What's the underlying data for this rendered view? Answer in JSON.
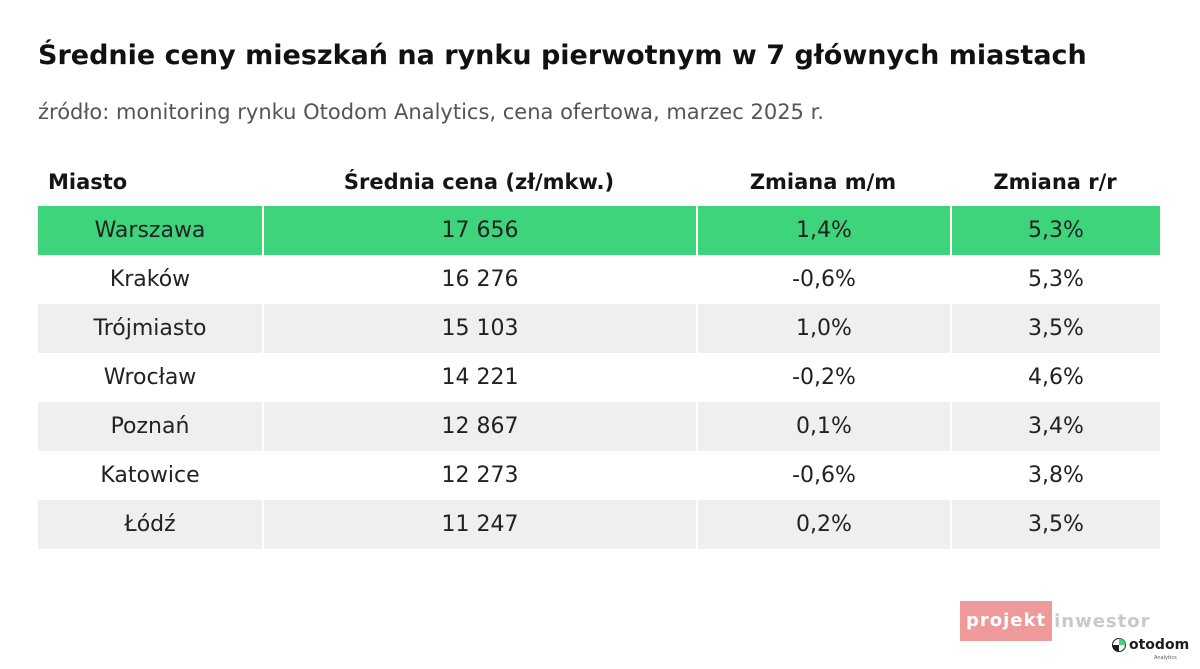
{
  "title": "Średnie ceny mieszkań na rynku pierwotnym w 7 głównych miastach",
  "subtitle": "źródło: monitoring rynku Otodom Analytics, cena ofertowa, marzec 2025 r.",
  "colors": {
    "highlight": "#3ed47c",
    "row_alt": "#efefef",
    "row_plain": "#ffffff",
    "watermark": "#ee9a9a"
  },
  "chart_data": {
    "type": "table",
    "headers": [
      "Miasto",
      "Średnia cena (zł/mkw.)",
      "Zmiana m/m",
      "Zmiana r/r"
    ],
    "rows": [
      [
        "Warszawa",
        "17 656",
        "1,4%",
        "5,3%"
      ],
      [
        "Kraków",
        "16 276",
        "-0,6%",
        "5,3%"
      ],
      [
        "Trójmiasto",
        "15 103",
        "1,0%",
        "3,5%"
      ],
      [
        "Wrocław",
        "14 221",
        "-0,2%",
        "4,6%"
      ],
      [
        "Poznań",
        "12 867",
        "0,1%",
        "3,4%"
      ],
      [
        "Katowice",
        "12 273",
        "-0,6%",
        "3,8%"
      ],
      [
        "Łódź",
        "11 247",
        "0,2%",
        "3,5%"
      ]
    ],
    "highlighted_row": "Warszawa"
  },
  "watermark": {
    "part1": "projekt",
    "part2": "inwestor"
  },
  "logo": {
    "name": "otodom",
    "sub": "Analytics",
    "icon": "otodom-logo-icon"
  }
}
